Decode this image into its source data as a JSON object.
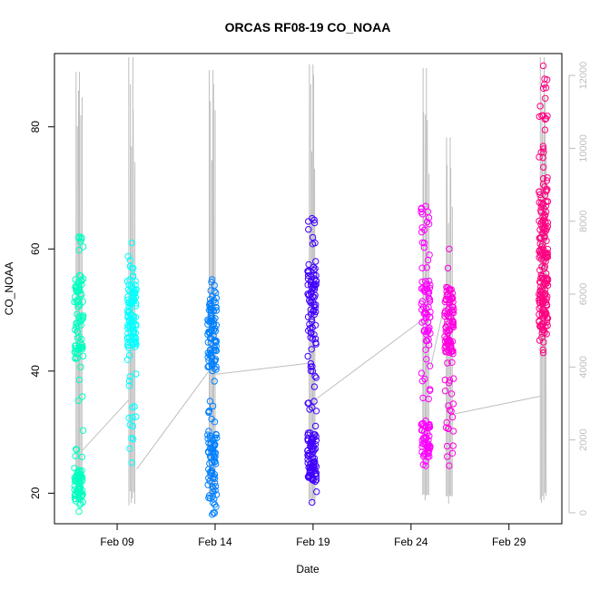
{
  "chart_data": {
    "type": "scatter",
    "title": "ORCAS RF08-19 CO_NOAA",
    "xlabel": "Date",
    "ylabel": "CO_NOAA",
    "x_ticks": [
      "Feb 09",
      "Feb 14",
      "Feb 19",
      "Feb 24",
      "Feb 29"
    ],
    "y_ticks": [
      20,
      40,
      60,
      80
    ],
    "y2_ticks": [
      0,
      2000,
      4000,
      6000,
      8000,
      10000,
      12000
    ],
    "ylim": [
      15,
      92
    ],
    "y2lim": [
      -300,
      12600
    ],
    "xlim_day": [
      5.8,
      31.7
    ],
    "grid": false,
    "colors": {
      "RF08": "#00ffc0",
      "RF09": "#00ffff",
      "RF10": "#0080ff",
      "RF11": "#4000ff",
      "RF12": "#ff00ff",
      "RF13": "#ff00e0",
      "RF14": "#ff0080",
      "altitude": "#bebebe"
    },
    "series": [
      {
        "flight": "RF08",
        "day": 7.05,
        "co_range": [
          17,
          62
        ],
        "dense": [
          [
            42,
            56
          ],
          [
            18,
            24
          ]
        ],
        "alt_peak": 12100,
        "n": 150
      },
      {
        "flight": "RF09",
        "day": 9.75,
        "co_range": [
          25,
          61
        ],
        "dense": [
          [
            44,
            56
          ]
        ],
        "alt_peak": 12500,
        "n": 110
      },
      {
        "flight": "RF10",
        "day": 13.85,
        "co_range": [
          16.5,
          55
        ],
        "dense": [
          [
            40,
            52
          ],
          [
            20,
            30
          ]
        ],
        "alt_peak": 12150,
        "n": 170
      },
      {
        "flight": "RF11",
        "day": 18.95,
        "co_range": [
          18.5,
          65
        ],
        "dense": [
          [
            44,
            58
          ],
          [
            22,
            30
          ]
        ],
        "alt_peak": 12300,
        "n": 170
      },
      {
        "flight": "RF12",
        "day": 24.75,
        "co_range": [
          24.5,
          67
        ],
        "dense": [
          [
            44,
            55
          ],
          [
            26,
            32
          ]
        ],
        "alt_peak": 12200,
        "n": 130
      },
      {
        "flight": "RF13",
        "day": 25.95,
        "co_range": [
          24.5,
          60
        ],
        "dense": [
          [
            43,
            54
          ]
        ],
        "alt_peak": 10300,
        "n": 110
      },
      {
        "flight": "RF14",
        "day": 30.75,
        "co_range": [
          43,
          90
        ],
        "dense": [
          [
            46,
            56
          ],
          [
            58,
            70
          ]
        ],
        "alt_peak": 12500,
        "n": 190
      }
    ],
    "altitude_connectors": [
      [
        7.2,
        1700,
        9.6,
        3100
      ],
      [
        10.0,
        1200,
        13.7,
        3900
      ],
      [
        14.0,
        3800,
        18.7,
        4100
      ],
      [
        19.1,
        3100,
        24.6,
        5300
      ],
      [
        25.0,
        4000,
        25.7,
        5700
      ],
      [
        26.1,
        2700,
        30.6,
        3200
      ]
    ]
  }
}
